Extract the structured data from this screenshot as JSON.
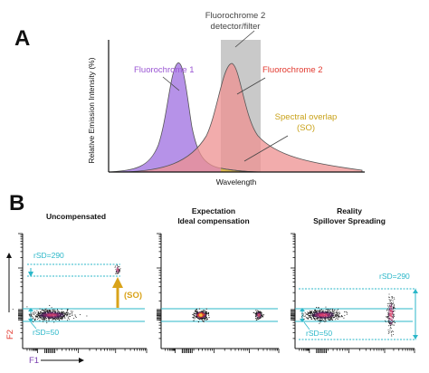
{
  "panel_a": {
    "letter": "A",
    "y_axis_label": "Relative Emission Intensity (%)",
    "x_axis_label": "Wavelength",
    "detector_label_line1": "Fluorochrome 2",
    "detector_label_line2": "detector/filter",
    "fluor1_label": "Fluorochrome 1",
    "fluor2_label": "Fluorochrome 2",
    "overlap_label_line1": "Spectral overlap",
    "overlap_label_line2": "(SO)",
    "colors": {
      "fluor1": "#a97fe4",
      "fluor2": "#ee9090",
      "overlap": "#d9b84a",
      "detector": "#c9c9c9",
      "fluor1_text": "#9a55d3",
      "fluor2_text": "#e2392f",
      "overlap_text": "#c9a21a"
    }
  },
  "panel_b": {
    "letter": "B",
    "plots": [
      {
        "title_line1": "Uncompensated",
        "title_line2": "",
        "rsd_top": "rSD=290",
        "rsd_bottom": "rSD=50",
        "annotation": "(SO)"
      },
      {
        "title_line1": "Expectation",
        "title_line2": "Ideal compensation"
      },
      {
        "title_line1": "Reality",
        "title_line2": "Spillover Spreading",
        "rsd_top": "rSD=290",
        "rsd_bottom": "rSD=50"
      }
    ],
    "axis_f2": "F2",
    "axis_f1": "F1",
    "colors": {
      "cyan": "#2bb7c9",
      "arrow": "#d9a31a",
      "f2": "#e2392f",
      "f1": "#7a3fb0"
    }
  }
}
